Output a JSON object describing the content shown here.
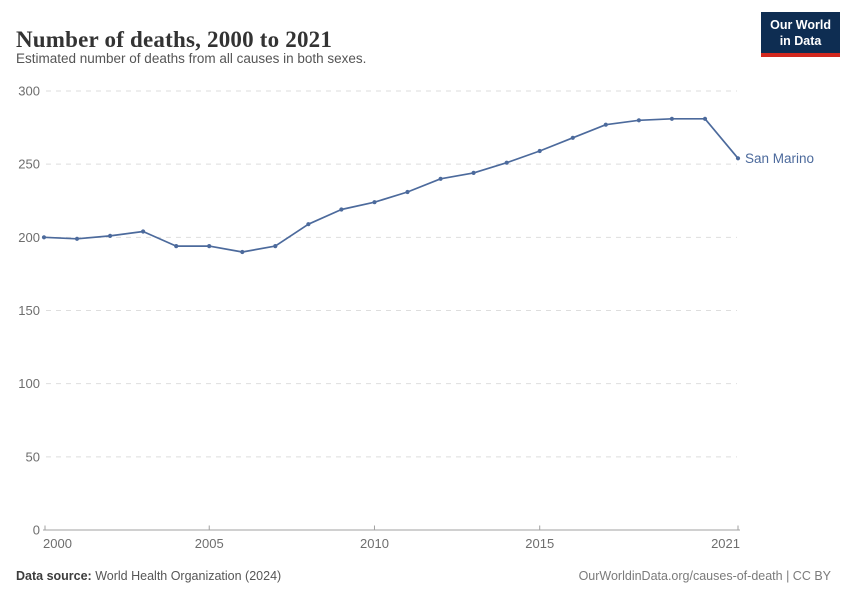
{
  "header": {
    "title": "Number of deaths, 2000 to 2021",
    "subtitle": "Estimated number of deaths from all causes in both sexes."
  },
  "logo": {
    "line1": "Our World",
    "line2": "in Data",
    "bg_color": "#0e2d52",
    "accent_color": "#d2281e"
  },
  "chart_data": {
    "type": "line",
    "title": "Number of deaths, 2000 to 2021",
    "subtitle": "Estimated number of deaths from all causes in both sexes.",
    "x": [
      2000,
      2001,
      2002,
      2003,
      2004,
      2005,
      2006,
      2007,
      2008,
      2009,
      2010,
      2011,
      2012,
      2013,
      2014,
      2015,
      2016,
      2017,
      2018,
      2019,
      2020,
      2021
    ],
    "series": [
      {
        "name": "San Marino",
        "color": "#4C6A9C",
        "values": [
          200,
          199,
          201,
          204,
          194,
          194,
          190,
          194,
          209,
          219,
          224,
          231,
          240,
          244,
          251,
          259,
          268,
          277,
          280,
          281,
          281,
          254
        ]
      }
    ],
    "xlabel": "",
    "ylabel": "",
    "xlim": [
      2000,
      2021
    ],
    "ylim": [
      0,
      300
    ],
    "y_ticks": [
      0,
      50,
      100,
      150,
      200,
      250,
      300
    ],
    "x_ticks": [
      2000,
      2005,
      2010,
      2015,
      2021
    ],
    "grid": "horizontal-dashed",
    "legend_position": "line-end-label",
    "colors": {
      "gridline": "#dedede",
      "axis": "#a1a1a1",
      "tick_label": "#6e6e6e"
    }
  },
  "footer": {
    "source_label": "Data source:",
    "source_value": "World Health Organization (2024)",
    "link": "OurWorldinData.org/causes-of-death | CC BY"
  }
}
